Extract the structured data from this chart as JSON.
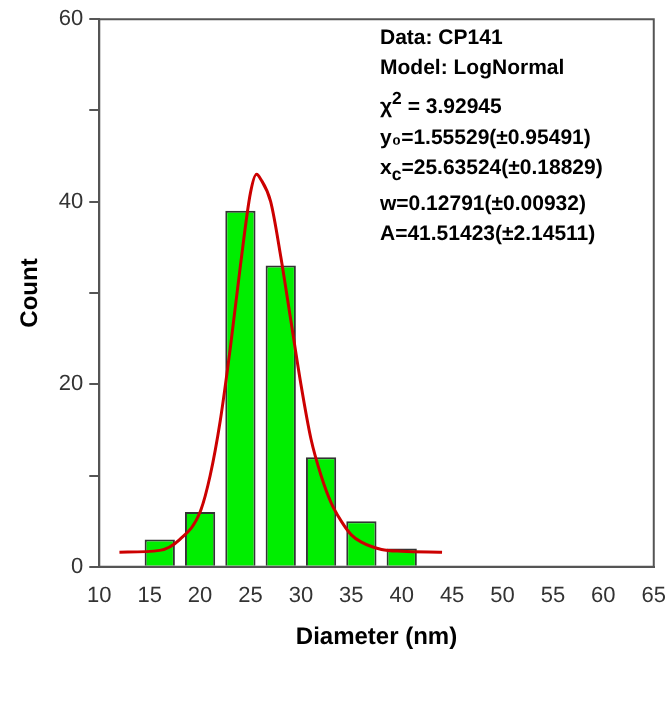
{
  "chart_data": {
    "type": "histogram",
    "xlabel": "Diameter (nm)",
    "ylabel": "Count",
    "xlim": [
      10,
      65
    ],
    "xticks": [
      10,
      15,
      20,
      25,
      30,
      35,
      40,
      45,
      50,
      55,
      60,
      65
    ],
    "ylim": [
      0,
      60
    ],
    "yticks": [
      0,
      {
        "value": 10,
        "label": null
      },
      20,
      {
        "value": 30,
        "label": null
      },
      40,
      {
        "value": 50,
        "label": null
      },
      60
    ],
    "grid": false,
    "legend": false,
    "series": [
      {
        "color": "#00ee00",
        "bins": [
          14,
          18,
          22,
          26,
          30,
          34,
          38,
          42
        ],
        "values": [
          3,
          6,
          39,
          33,
          12,
          5,
          2
        ]
      },
      {
        "type": "line",
        "color": "#cc0000",
        "marker": "none",
        "x": [
          12,
          16,
          18,
          20,
          21,
          22,
          23,
          24,
          25,
          25.6,
          26,
          27,
          28,
          29,
          30,
          31,
          32,
          33,
          34,
          35,
          36,
          38,
          40,
          44
        ],
        "values": [
          1.6,
          1.8,
          3,
          6,
          10,
          16,
          24,
          33,
          41,
          43,
          42.5,
          40,
          34,
          27,
          20,
          14,
          10,
          7,
          5,
          3.5,
          2.7,
          1.9,
          1.7,
          1.6
        ]
      }
    ],
    "annotations": [
      "Data: CP141",
      "Model: LogNormal",
      "χ$^{2}$ = 3.92945",
      "y₀=1.55529(±0.95491)",
      "x$_{c}$=25.63524(±0.18829)",
      "w=0.12791(±0.00932)",
      "A=41.51423(±2.14511)"
    ]
  }
}
